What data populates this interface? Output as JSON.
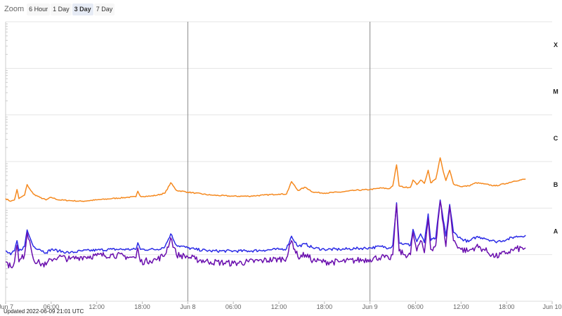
{
  "zoom": {
    "label": "Zoom",
    "options": [
      "6 Hour",
      "1 Day",
      "3 Day",
      "7 Day"
    ],
    "selected": "3 Day"
  },
  "updated_text": "Updated 2022-06-09 21:01 UTC",
  "chart_data": {
    "type": "line",
    "title": "",
    "y_scale": "log",
    "ylim": [
      1e-09,
      0.001
    ],
    "x_range": [
      "2022-06-07T00:00",
      "2022-06-10T00:00"
    ],
    "flare_classes": [
      {
        "label": "A",
        "lower": 1e-08
      },
      {
        "label": "B",
        "lower": 1e-07
      },
      {
        "label": "C",
        "lower": 1e-06
      },
      {
        "label": "M",
        "lower": 1e-05
      },
      {
        "label": "X",
        "lower": 0.0001
      }
    ],
    "x_ticks": [
      {
        "t": "2022-06-07T00:00",
        "label": "Jun 7"
      },
      {
        "t": "2022-06-07T06:00",
        "label": "06:00"
      },
      {
        "t": "2022-06-07T12:00",
        "label": "12:00"
      },
      {
        "t": "2022-06-07T18:00",
        "label": "18:00"
      },
      {
        "t": "2022-06-08T00:00",
        "label": "Jun 8"
      },
      {
        "t": "2022-06-08T06:00",
        "label": "06:00"
      },
      {
        "t": "2022-06-08T12:00",
        "label": "12:00"
      },
      {
        "t": "2022-06-08T18:00",
        "label": "18:00"
      },
      {
        "t": "2022-06-09T00:00",
        "label": "Jun 9"
      },
      {
        "t": "2022-06-09T06:00",
        "label": "06:00"
      },
      {
        "t": "2022-06-09T12:00",
        "label": "12:00"
      },
      {
        "t": "2022-06-09T18:00",
        "label": "18:00"
      },
      {
        "t": "2022-06-10T00:00",
        "label": "Jun 10"
      }
    ],
    "day_dividers": [
      "2022-06-08T00:00",
      "2022-06-09T00:00"
    ],
    "grid": true,
    "series": [
      {
        "color": "#f5891f",
        "points": [
          [
            "2022-06-07T00:00",
            1.6e-07
          ],
          [
            "2022-06-07T00:40",
            1.4e-07
          ],
          [
            "2022-06-07T01:10",
            1.5e-07
          ],
          [
            "2022-06-07T01:30",
            2.5e-07
          ],
          [
            "2022-06-07T01:45",
            1.6e-07
          ],
          [
            "2022-06-07T02:30",
            1.9e-07
          ],
          [
            "2022-06-07T02:50",
            3.2e-07
          ],
          [
            "2022-06-07T03:10",
            2.6e-07
          ],
          [
            "2022-06-07T03:40",
            2e-07
          ],
          [
            "2022-06-07T04:30",
            1.7e-07
          ],
          [
            "2022-06-07T05:20",
            1.5e-07
          ],
          [
            "2022-06-07T06:00",
            1.7e-07
          ],
          [
            "2022-06-07T07:00",
            1.5e-07
          ],
          [
            "2022-06-07T08:30",
            1.45e-07
          ],
          [
            "2022-06-07T10:00",
            1.4e-07
          ],
          [
            "2022-06-07T12:00",
            1.5e-07
          ],
          [
            "2022-06-07T14:00",
            1.6e-07
          ],
          [
            "2022-06-07T16:00",
            1.7e-07
          ],
          [
            "2022-06-07T17:10",
            1.75e-07
          ],
          [
            "2022-06-07T17:25",
            2.3e-07
          ],
          [
            "2022-06-07T17:45",
            1.8e-07
          ],
          [
            "2022-06-07T19:00",
            1.8e-07
          ],
          [
            "2022-06-07T20:00",
            1.9e-07
          ],
          [
            "2022-06-07T21:00",
            2.1e-07
          ],
          [
            "2022-06-07T21:45",
            3.5e-07
          ],
          [
            "2022-06-07T22:30",
            2.4e-07
          ],
          [
            "2022-06-08T00:00",
            2.2e-07
          ],
          [
            "2022-06-08T01:00",
            2.1e-07
          ],
          [
            "2022-06-08T03:00",
            1.9e-07
          ],
          [
            "2022-06-08T06:00",
            1.8e-07
          ],
          [
            "2022-06-08T08:00",
            1.8e-07
          ],
          [
            "2022-06-08T10:00",
            1.9e-07
          ],
          [
            "2022-06-08T12:00",
            2e-07
          ],
          [
            "2022-06-08T13:00",
            2e-07
          ],
          [
            "2022-06-08T13:40",
            3.7e-07
          ],
          [
            "2022-06-08T14:30",
            2.4e-07
          ],
          [
            "2022-06-08T15:30",
            2.8e-07
          ],
          [
            "2022-06-08T16:30",
            2.2e-07
          ],
          [
            "2022-06-08T18:00",
            2.1e-07
          ],
          [
            "2022-06-08T20:00",
            2.2e-07
          ],
          [
            "2022-06-08T22:00",
            2.4e-07
          ],
          [
            "2022-06-09T00:00",
            2.5e-07
          ],
          [
            "2022-06-09T01:30",
            2.7e-07
          ],
          [
            "2022-06-09T02:30",
            2.6e-07
          ],
          [
            "2022-06-09T03:00",
            3e-07
          ],
          [
            "2022-06-09T03:30",
            8.5e-07
          ],
          [
            "2022-06-09T03:50",
            3e-07
          ],
          [
            "2022-06-09T04:30",
            2.8e-07
          ],
          [
            "2022-06-09T05:20",
            2.8e-07
          ],
          [
            "2022-06-09T05:40",
            4e-07
          ],
          [
            "2022-06-09T06:10",
            3.2e-07
          ],
          [
            "2022-06-09T06:40",
            4e-07
          ],
          [
            "2022-06-09T07:10",
            3.4e-07
          ],
          [
            "2022-06-09T07:40",
            6.5e-07
          ],
          [
            "2022-06-09T08:00",
            3.5e-07
          ],
          [
            "2022-06-09T08:40",
            4.2e-07
          ],
          [
            "2022-06-09T09:15",
            1.2e-06
          ],
          [
            "2022-06-09T09:40",
            6e-07
          ],
          [
            "2022-06-09T10:00",
            3.9e-07
          ],
          [
            "2022-06-09T10:30",
            6.5e-07
          ],
          [
            "2022-06-09T11:00",
            3.3e-07
          ],
          [
            "2022-06-09T12:00",
            2.9e-07
          ],
          [
            "2022-06-09T13:00",
            3e-07
          ],
          [
            "2022-06-09T14:00",
            3.5e-07
          ],
          [
            "2022-06-09T15:00",
            3.3e-07
          ],
          [
            "2022-06-09T16:30",
            3e-07
          ],
          [
            "2022-06-09T18:00",
            3.4e-07
          ],
          [
            "2022-06-09T19:00",
            3.8e-07
          ],
          [
            "2022-06-09T20:30",
            4.2e-07
          ]
        ]
      },
      {
        "color": "#2b2be6",
        "points": [
          [
            "2022-06-07T00:00",
            1.2e-08
          ],
          [
            "2022-06-07T00:40",
            1e-08
          ],
          [
            "2022-06-07T01:10",
            1.2e-08
          ],
          [
            "2022-06-07T01:30",
            2e-08
          ],
          [
            "2022-06-07T01:45",
            1.2e-08
          ],
          [
            "2022-06-07T02:30",
            1.5e-08
          ],
          [
            "2022-06-07T02:50",
            3.4e-08
          ],
          [
            "2022-06-07T03:10",
            2.4e-08
          ],
          [
            "2022-06-07T03:40",
            1.5e-08
          ],
          [
            "2022-06-07T04:30",
            1.3e-08
          ],
          [
            "2022-06-07T05:20",
            1.1e-08
          ],
          [
            "2022-06-07T06:00",
            1.3e-08
          ],
          [
            "2022-06-07T07:00",
            1.2e-08
          ],
          [
            "2022-06-07T08:30",
            1.1e-08
          ],
          [
            "2022-06-07T10:00",
            1.2e-08
          ],
          [
            "2022-06-07T12:00",
            1.25e-08
          ],
          [
            "2022-06-07T14:00",
            1.3e-08
          ],
          [
            "2022-06-07T16:00",
            1.3e-08
          ],
          [
            "2022-06-07T17:10",
            1.3e-08
          ],
          [
            "2022-06-07T17:25",
            1.8e-08
          ],
          [
            "2022-06-07T17:45",
            1.3e-08
          ],
          [
            "2022-06-07T19:00",
            1.3e-08
          ],
          [
            "2022-06-07T20:00",
            1.3e-08
          ],
          [
            "2022-06-07T21:00",
            1.5e-08
          ],
          [
            "2022-06-07T21:45",
            2.8e-08
          ],
          [
            "2022-06-07T22:30",
            1.6e-08
          ],
          [
            "2022-06-08T00:00",
            1.4e-08
          ],
          [
            "2022-06-08T01:00",
            1.3e-08
          ],
          [
            "2022-06-08T03:00",
            1.2e-08
          ],
          [
            "2022-06-08T06:00",
            1.2e-08
          ],
          [
            "2022-06-08T08:00",
            1.2e-08
          ],
          [
            "2022-06-08T10:00",
            1.25e-08
          ],
          [
            "2022-06-08T12:00",
            1.3e-08
          ],
          [
            "2022-06-08T13:00",
            1.35e-08
          ],
          [
            "2022-06-08T13:40",
            2.5e-08
          ],
          [
            "2022-06-08T14:30",
            1.5e-08
          ],
          [
            "2022-06-08T15:30",
            1.7e-08
          ],
          [
            "2022-06-08T16:30",
            1.4e-08
          ],
          [
            "2022-06-08T18:00",
            1.3e-08
          ],
          [
            "2022-06-08T20:00",
            1.3e-08
          ],
          [
            "2022-06-08T22:00",
            1.35e-08
          ],
          [
            "2022-06-09T00:00",
            1.4e-08
          ],
          [
            "2022-06-09T01:30",
            1.5e-08
          ],
          [
            "2022-06-09T02:30",
            1.4e-08
          ],
          [
            "2022-06-09T03:00",
            1.6e-08
          ],
          [
            "2022-06-09T03:30",
            1.3e-07
          ],
          [
            "2022-06-09T03:50",
            1.8e-08
          ],
          [
            "2022-06-09T04:30",
            1.7e-08
          ],
          [
            "2022-06-09T05:20",
            1.6e-08
          ],
          [
            "2022-06-09T05:40",
            3.5e-08
          ],
          [
            "2022-06-09T06:10",
            1.9e-08
          ],
          [
            "2022-06-09T06:40",
            2.8e-08
          ],
          [
            "2022-06-09T07:10",
            1.8e-08
          ],
          [
            "2022-06-09T07:40",
            7.5e-08
          ],
          [
            "2022-06-09T08:00",
            2e-08
          ],
          [
            "2022-06-09T08:40",
            2.3e-08
          ],
          [
            "2022-06-09T09:15",
            1.5e-07
          ],
          [
            "2022-06-09T09:40",
            5.5e-08
          ],
          [
            "2022-06-09T10:00",
            2.5e-08
          ],
          [
            "2022-06-09T10:30",
            1.2e-07
          ],
          [
            "2022-06-09T11:00",
            3e-08
          ],
          [
            "2022-06-09T12:00",
            2.2e-08
          ],
          [
            "2022-06-09T13:00",
            1.9e-08
          ],
          [
            "2022-06-09T14:00",
            2.4e-08
          ],
          [
            "2022-06-09T15:00",
            2.3e-08
          ],
          [
            "2022-06-09T16:30",
            1.9e-08
          ],
          [
            "2022-06-09T18:00",
            2.1e-08
          ],
          [
            "2022-06-09T19:00",
            2.4e-08
          ],
          [
            "2022-06-09T20:30",
            2.6e-08
          ]
        ]
      },
      {
        "color": "#6a0fae",
        "points": [
          [
            "2022-06-07T00:00",
            7e-09
          ],
          [
            "2022-06-07T00:40",
            5.5e-09
          ],
          [
            "2022-06-07T01:10",
            7e-09
          ],
          [
            "2022-06-07T01:30",
            1.6e-08
          ],
          [
            "2022-06-07T01:45",
            7e-09
          ],
          [
            "2022-06-07T02:30",
            1e-08
          ],
          [
            "2022-06-07T02:50",
            3e-08
          ],
          [
            "2022-06-07T03:10",
            2e-08
          ],
          [
            "2022-06-07T03:40",
            8e-09
          ],
          [
            "2022-06-07T04:30",
            6.5e-09
          ],
          [
            "2022-06-07T05:20",
            6e-09
          ],
          [
            "2022-06-07T06:00",
            8e-09
          ],
          [
            "2022-06-07T07:00",
            9e-09
          ],
          [
            "2022-06-07T08:30",
            8e-09
          ],
          [
            "2022-06-07T10:00",
            9e-09
          ],
          [
            "2022-06-07T12:00",
            9.5e-09
          ],
          [
            "2022-06-07T14:00",
            1e-08
          ],
          [
            "2022-06-07T16:00",
            9e-09
          ],
          [
            "2022-06-07T17:10",
            8.5e-09
          ],
          [
            "2022-06-07T17:25",
            1.4e-08
          ],
          [
            "2022-06-07T17:45",
            7e-09
          ],
          [
            "2022-06-07T19:00",
            7.5e-09
          ],
          [
            "2022-06-07T20:00",
            8e-09
          ],
          [
            "2022-06-07T21:00",
            1e-08
          ],
          [
            "2022-06-07T21:45",
            2.3e-08
          ],
          [
            "2022-06-07T22:30",
            1e-08
          ],
          [
            "2022-06-08T00:00",
            9e-09
          ],
          [
            "2022-06-08T01:00",
            8e-09
          ],
          [
            "2022-06-08T03:00",
            7e-09
          ],
          [
            "2022-06-08T06:00",
            6.5e-09
          ],
          [
            "2022-06-08T08:00",
            7e-09
          ],
          [
            "2022-06-08T10:00",
            7.5e-09
          ],
          [
            "2022-06-08T12:00",
            8e-09
          ],
          [
            "2022-06-08T13:00",
            8.5e-09
          ],
          [
            "2022-06-08T13:40",
            2e-08
          ],
          [
            "2022-06-08T14:30",
            9e-09
          ],
          [
            "2022-06-08T15:30",
            1e-08
          ],
          [
            "2022-06-08T16:30",
            7.5e-09
          ],
          [
            "2022-06-08T18:00",
            7e-09
          ],
          [
            "2022-06-08T20:00",
            7e-09
          ],
          [
            "2022-06-08T22:00",
            7.5e-09
          ],
          [
            "2022-06-09T00:00",
            8e-09
          ],
          [
            "2022-06-09T01:30",
            9e-09
          ],
          [
            "2022-06-09T02:30",
            8e-09
          ],
          [
            "2022-06-09T03:00",
            1e-08
          ],
          [
            "2022-06-09T03:30",
            1.2e-07
          ],
          [
            "2022-06-09T03:50",
            1.2e-08
          ],
          [
            "2022-06-09T04:30",
            1e-08
          ],
          [
            "2022-06-09T05:20",
            1e-08
          ],
          [
            "2022-06-09T05:40",
            3e-08
          ],
          [
            "2022-06-09T06:10",
            1.2e-08
          ],
          [
            "2022-06-09T06:40",
            2e-08
          ],
          [
            "2022-06-09T07:10",
            1.1e-08
          ],
          [
            "2022-06-09T07:40",
            6e-08
          ],
          [
            "2022-06-09T08:00",
            1.3e-08
          ],
          [
            "2022-06-09T08:40",
            1.6e-08
          ],
          [
            "2022-06-09T09:15",
            1.4e-07
          ],
          [
            "2022-06-09T09:40",
            4.5e-08
          ],
          [
            "2022-06-09T10:00",
            1.5e-08
          ],
          [
            "2022-06-09T10:30",
            1.1e-07
          ],
          [
            "2022-06-09T11:00",
            2e-08
          ],
          [
            "2022-06-09T12:00",
            1.3e-08
          ],
          [
            "2022-06-09T13:00",
            1.2e-08
          ],
          [
            "2022-06-09T14:00",
            1.5e-08
          ],
          [
            "2022-06-09T15:00",
            1.3e-08
          ],
          [
            "2022-06-09T16:30",
            9e-09
          ],
          [
            "2022-06-09T18:00",
            1.1e-08
          ],
          [
            "2022-06-09T19:00",
            1.3e-08
          ],
          [
            "2022-06-09T20:30",
            1.4e-08
          ]
        ]
      }
    ]
  }
}
